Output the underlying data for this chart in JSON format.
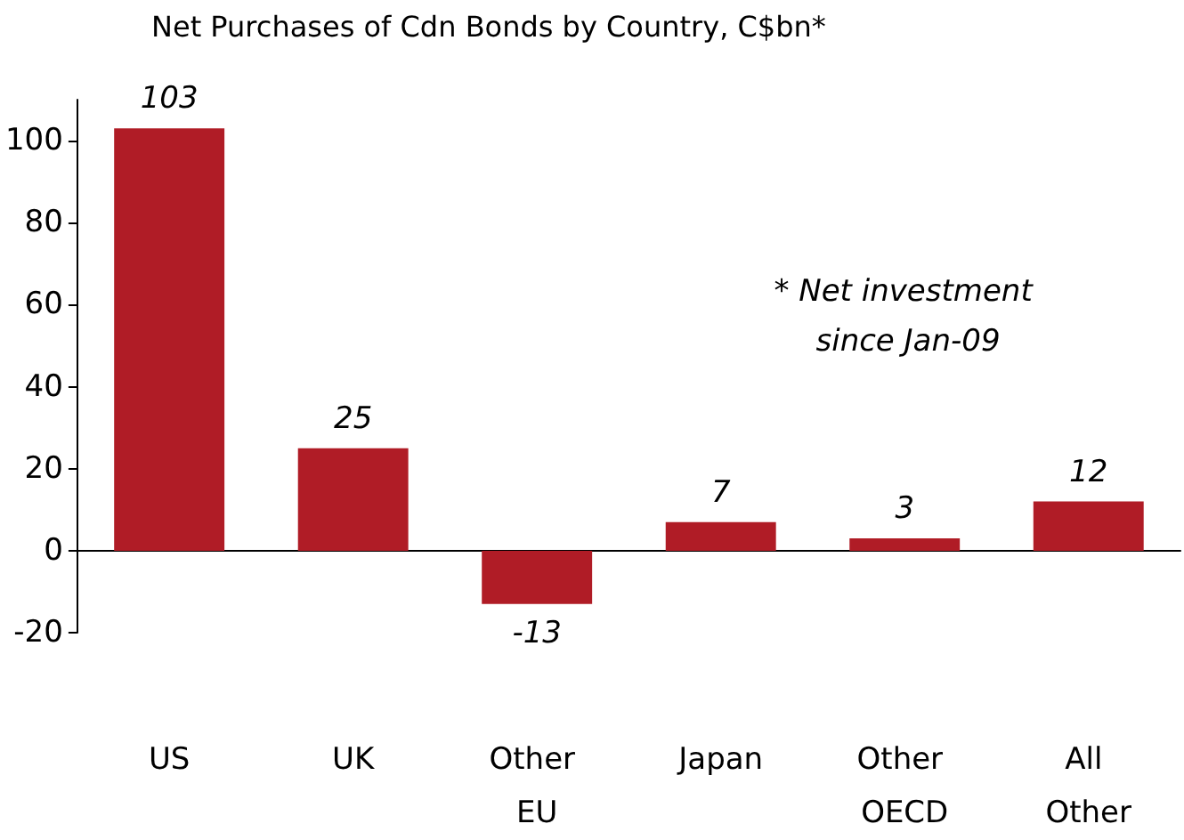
{
  "chart_data": {
    "type": "bar",
    "title": "Net Purchases of Cdn Bonds by Country, C$bn*",
    "categories": [
      "US",
      "UK",
      "Other EU",
      "Japan",
      "Other OECD",
      "All Other"
    ],
    "values": [
      103,
      25,
      -13,
      7,
      3,
      12
    ],
    "color": "#b01c26",
    "ylim": [
      -20,
      110
    ],
    "yticks": [
      -20,
      0,
      20,
      40,
      60,
      80,
      100
    ],
    "data_labels": true,
    "annotations": [
      "* Net investment since Jan-09"
    ]
  }
}
